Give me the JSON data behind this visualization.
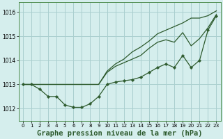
{
  "bg_color": "#d5eeed",
  "grid_color": "#aacfcf",
  "line_color": "#2d5a2d",
  "xlabel": "Graphe pression niveau de la mer (hPa)",
  "xlabel_fontsize": 7.5,
  "ylim": [
    1011.5,
    1016.4
  ],
  "xlim": [
    -0.5,
    23.5
  ],
  "yticks": [
    1012,
    1013,
    1014,
    1015,
    1016
  ],
  "xticks": [
    0,
    1,
    2,
    3,
    4,
    5,
    6,
    7,
    8,
    9,
    10,
    11,
    12,
    13,
    14,
    15,
    16,
    17,
    18,
    19,
    20,
    21,
    22,
    23
  ],
  "line_smooth_x": [
    0,
    1,
    2,
    3,
    4,
    5,
    6,
    7,
    8,
    9,
    10,
    11,
    12,
    13,
    14,
    15,
    16,
    17,
    18,
    19,
    20,
    21,
    22,
    23
  ],
  "line_smooth_y": [
    1013.0,
    1013.0,
    1013.0,
    1013.0,
    1013.0,
    1013.0,
    1013.0,
    1013.0,
    1013.0,
    1013.0,
    1013.55,
    1013.85,
    1014.05,
    1014.35,
    1014.55,
    1014.8,
    1015.1,
    1015.25,
    1015.4,
    1015.55,
    1015.75,
    1015.75,
    1015.85,
    1016.05
  ],
  "line_mid_x": [
    0,
    9,
    10,
    11,
    12,
    13,
    14,
    15,
    16,
    17,
    18,
    19,
    20,
    21,
    22,
    23
  ],
  "line_mid_y": [
    1013.0,
    1013.0,
    1013.5,
    1013.75,
    1013.9,
    1014.05,
    1014.2,
    1014.5,
    1014.75,
    1014.85,
    1014.75,
    1015.15,
    1014.6,
    1014.9,
    1015.35,
    1015.9
  ],
  "line_marker_x": [
    0,
    1,
    2,
    3,
    4,
    5,
    6,
    7,
    8,
    9,
    10,
    11,
    12,
    13,
    14,
    15,
    16,
    17,
    18,
    19,
    20,
    21,
    22,
    23
  ],
  "line_marker_y": [
    1013.0,
    1013.0,
    1012.8,
    1012.5,
    1012.5,
    1012.15,
    1012.05,
    1012.05,
    1012.2,
    1012.5,
    1013.0,
    1013.1,
    1013.15,
    1013.2,
    1013.3,
    1013.5,
    1013.7,
    1013.85,
    1013.7,
    1014.2,
    1013.7,
    1014.0,
    1015.25,
    1015.85
  ]
}
